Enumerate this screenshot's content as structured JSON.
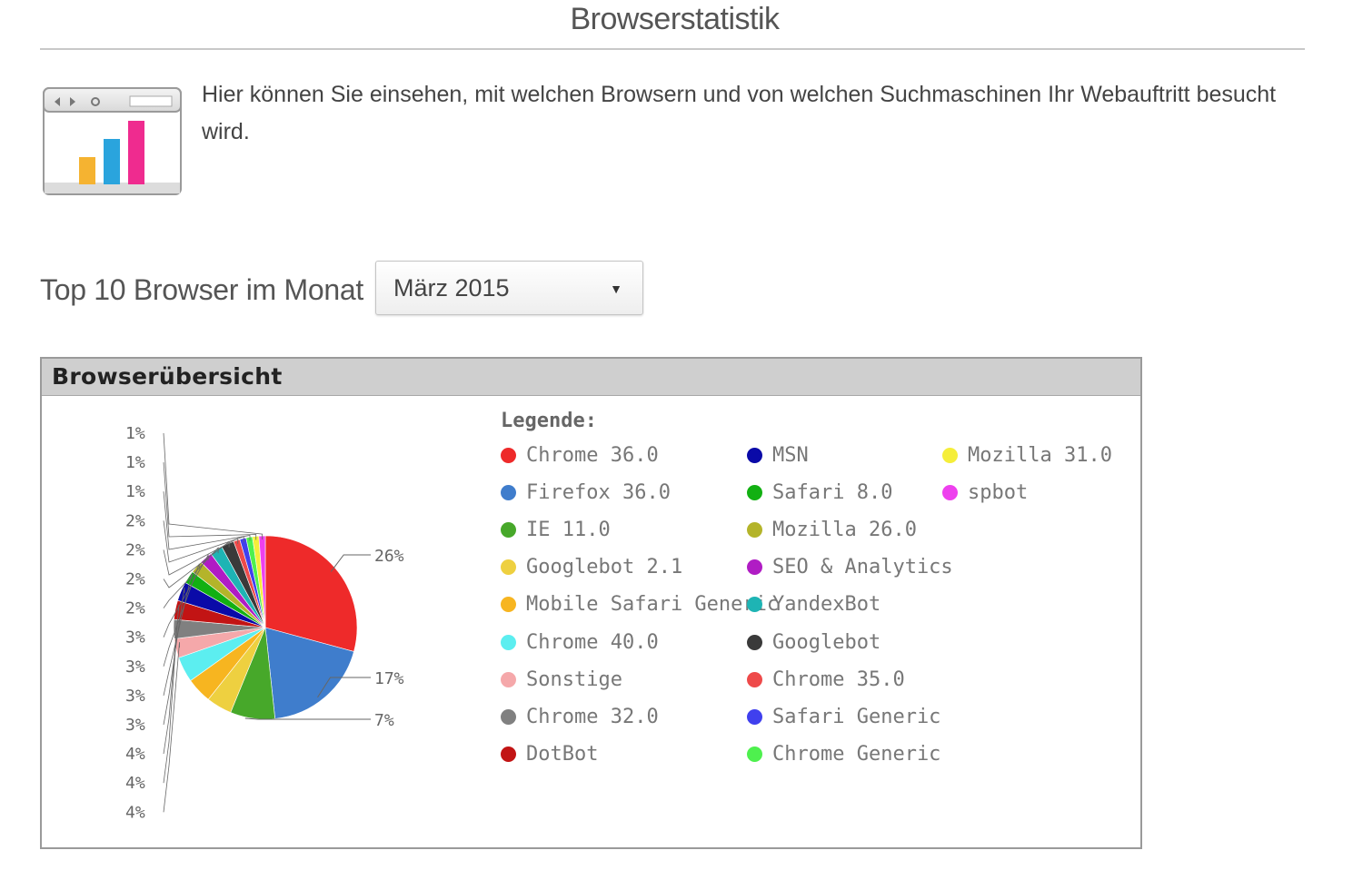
{
  "page": {
    "title": "Browserstatistik",
    "intro": "Hier können Sie einsehen, mit welchen Browsern und von welchen Suchmaschinen Ihr Webauftritt besucht wird."
  },
  "filter": {
    "label": "Top 10 Browser im Monat",
    "selected_month": "März 2015",
    "arrow": "▼"
  },
  "panel": {
    "title": "Browserübersicht",
    "legend_title": "Legende:"
  },
  "colors": {
    "icon_bar_1": "#f5b331",
    "icon_bar_2": "#2aa4dd",
    "icon_bar_3": "#ef2b8f"
  },
  "chart_data": {
    "type": "pie",
    "title": "",
    "series": [
      {
        "name": "Chrome 36.0",
        "value": 26,
        "color": "#ee2a2a"
      },
      {
        "name": "Firefox 36.0",
        "value": 17,
        "color": "#3f7dcc"
      },
      {
        "name": "IE 11.0",
        "value": 7,
        "color": "#47a82a"
      },
      {
        "name": "Googlebot 2.1",
        "value": 4,
        "color": "#eed040"
      },
      {
        "name": "Mobile Safari Generic",
        "value": 4,
        "color": "#f7b520"
      },
      {
        "name": "Chrome 40.0",
        "value": 4,
        "color": "#5ceef0"
      },
      {
        "name": "Sonstige",
        "value": 3,
        "color": "#f5a8aa"
      },
      {
        "name": "Chrome 32.0",
        "value": 3,
        "color": "#808080"
      },
      {
        "name": "DotBot",
        "value": 3,
        "color": "#c21414"
      },
      {
        "name": "MSN",
        "value": 3,
        "color": "#0a0aa8"
      },
      {
        "name": "Safari 8.0",
        "value": 2,
        "color": "#12b012"
      },
      {
        "name": "Mozilla 26.0",
        "value": 2,
        "color": "#b4b42a"
      },
      {
        "name": "SEO & Analytics",
        "value": 2,
        "color": "#b01cc4"
      },
      {
        "name": "YandexBot",
        "value": 2,
        "color": "#1eb4b4"
      },
      {
        "name": "Googlebot",
        "value": 2,
        "color": "#3a3a3a"
      },
      {
        "name": "Chrome 35.0",
        "value": 1,
        "color": "#ee4a4a"
      },
      {
        "name": "Safari Generic",
        "value": 1,
        "color": "#4040ee"
      },
      {
        "name": "Chrome Generic",
        "value": 1,
        "color": "#4ef04e"
      },
      {
        "name": "Mozilla 31.0",
        "value": 1,
        "color": "#f5ee3a"
      },
      {
        "name": "spbot",
        "value": 1,
        "color": "#ee40ee"
      }
    ],
    "slice_labels": [
      "26%",
      "17%",
      "7%"
    ],
    "stacked_labels": [
      "1%",
      "1%",
      "1%",
      "2%",
      "2%",
      "2%",
      "2%",
      "3%",
      "3%",
      "3%",
      "3%",
      "4%",
      "4%",
      "4%"
    ],
    "legend": {
      "placement": "right",
      "items": [
        "Chrome 36.0",
        "Firefox 36.0",
        "IE 11.0",
        "Googlebot 2.1",
        "Mobile Safari Generic",
        "Chrome 40.0",
        "Sonstige",
        "Chrome 32.0",
        "DotBot",
        "MSN",
        "Safari 8.0",
        "Mozilla 26.0",
        "SEO & Analytics",
        "YandexBot",
        "Googlebot",
        "Chrome 35.0",
        "Safari Generic",
        "Chrome Generic",
        "Mozilla 31.0",
        "spbot"
      ]
    }
  }
}
